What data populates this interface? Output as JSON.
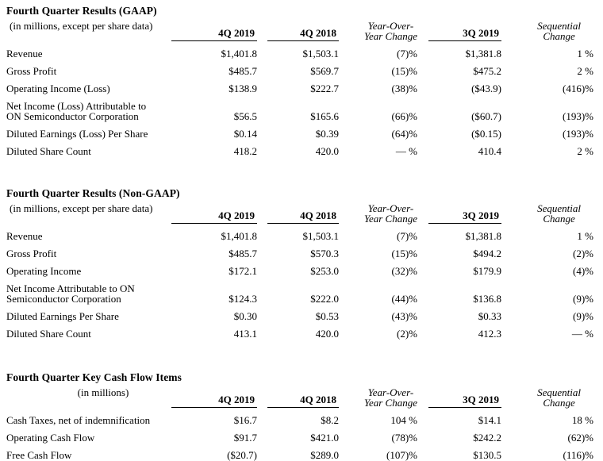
{
  "page": {
    "background": "#ffffff",
    "text_color": "#000000"
  },
  "tables": [
    {
      "title": "Fourth Quarter Results (GAAP)",
      "subtitle": "(in millions, except per share data)",
      "subtitle_align": "left",
      "columns": [
        {
          "label": "4Q 2019",
          "style": "bold-underline"
        },
        {
          "label": "4Q 2018",
          "style": "bold-underline"
        },
        {
          "label": "Year-Over-\nYear Change",
          "style": "italic"
        },
        {
          "label": "3Q 2019",
          "style": "bold-underline"
        },
        {
          "label": "Sequential\nChange",
          "style": "italic"
        }
      ],
      "rows": [
        {
          "label": "Revenue",
          "values": [
            "$1,401.8",
            "$1,503.1",
            "(7)%",
            "$1,381.8",
            "1 %"
          ]
        },
        {
          "label": "Gross Profit",
          "values": [
            "$485.7",
            "$569.7",
            "(15)%",
            "$475.2",
            "2 %"
          ]
        },
        {
          "label": "Operating Income (Loss)",
          "values": [
            "$138.9",
            "$222.7",
            "(38)%",
            "($43.9)",
            "(416)%"
          ]
        },
        {
          "label": "Net Income (Loss) Attributable to\nON Semiconductor Corporation",
          "values": [
            "$56.5",
            "$165.6",
            "(66)%",
            "($60.7)",
            "(193)%"
          ]
        },
        {
          "label": "Diluted Earnings (Loss) Per Share",
          "values": [
            "$0.14",
            "$0.39",
            "(64)%",
            "($0.15)",
            "(193)%"
          ]
        },
        {
          "label": "Diluted Share Count",
          "values": [
            "418.2",
            "420.0",
            "— %",
            "410.4",
            "2 %"
          ]
        }
      ]
    },
    {
      "title": "Fourth Quarter Results (Non-GAAP)",
      "subtitle": "(in millions, except per share data)",
      "subtitle_align": "left",
      "columns": [
        {
          "label": "4Q 2019",
          "style": "bold-underline"
        },
        {
          "label": "4Q 2018",
          "style": "bold-underline"
        },
        {
          "label": "Year-Over-\nYear Change",
          "style": "italic"
        },
        {
          "label": "3Q 2019",
          "style": "bold-underline"
        },
        {
          "label": "Sequential\nChange",
          "style": "italic"
        }
      ],
      "rows": [
        {
          "label": "Revenue",
          "values": [
            "$1,401.8",
            "$1,503.1",
            "(7)%",
            "$1,381.8",
            "1 %"
          ]
        },
        {
          "label": "Gross Profit",
          "values": [
            "$485.7",
            "$570.3",
            "(15)%",
            "$494.2",
            "(2)%"
          ]
        },
        {
          "label": "Operating Income",
          "values": [
            "$172.1",
            "$253.0",
            "(32)%",
            "$179.9",
            "(4)%"
          ]
        },
        {
          "label": "Net Income Attributable to ON\nSemiconductor Corporation",
          "values": [
            "$124.3",
            "$222.0",
            "(44)%",
            "$136.8",
            "(9)%"
          ]
        },
        {
          "label": "Diluted Earnings Per Share",
          "values": [
            "$0.30",
            "$0.53",
            "(43)%",
            "$0.33",
            "(9)%"
          ]
        },
        {
          "label": "Diluted Share Count",
          "values": [
            "413.1",
            "420.0",
            "(2)%",
            "412.3",
            "— %"
          ]
        }
      ]
    },
    {
      "title": "Fourth Quarter Key Cash Flow Items",
      "subtitle": "(in millions)",
      "subtitle_align": "center",
      "columns": [
        {
          "label": "4Q 2019",
          "style": "bold-underline"
        },
        {
          "label": "4Q 2018",
          "style": "bold-underline"
        },
        {
          "label": "Year-Over-\nYear Change",
          "style": "italic"
        },
        {
          "label": "3Q 2019",
          "style": "bold-underline"
        },
        {
          "label": "Sequential\nChange",
          "style": "italic"
        }
      ],
      "rows": [
        {
          "label": "Cash Taxes, net of indemnification",
          "values": [
            "$16.7",
            "$8.2",
            "104 %",
            "$14.1",
            "18 %"
          ]
        },
        {
          "label": "Operating Cash Flow",
          "values": [
            "$91.7",
            "$421.0",
            "(78)%",
            "$242.2",
            "(62)%"
          ]
        },
        {
          "label": "Free Cash Flow",
          "values": [
            "($20.7)",
            "$289.0",
            "(107)%",
            "$130.5",
            "(116)%"
          ]
        }
      ]
    }
  ]
}
